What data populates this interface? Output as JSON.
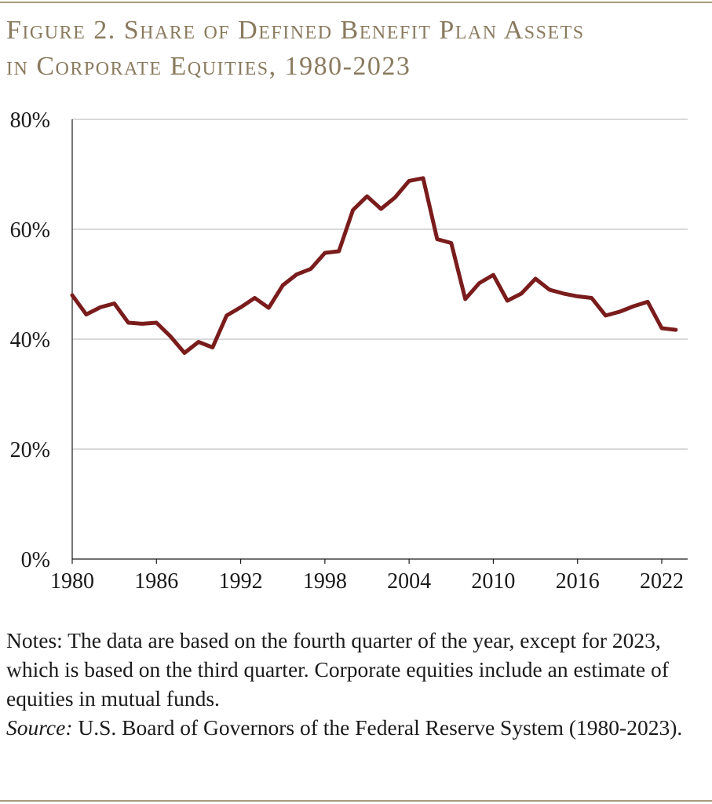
{
  "header": {
    "title_line1": "Figure 2. Share of Defined Benefit Plan Assets",
    "title_line2": "in Corporate Equities, 1980-2023"
  },
  "chart_data": {
    "type": "line",
    "title": "Figure 2. Share of Defined Benefit Plan Assets in Corporate Equities, 1980-2023",
    "xlabel": "",
    "ylabel": "",
    "xlim": [
      1980,
      2023
    ],
    "ylim": [
      0,
      80
    ],
    "x_ticks": [
      1980,
      1986,
      1992,
      1998,
      2004,
      2010,
      2016,
      2022
    ],
    "y_ticks": [
      0,
      20,
      40,
      60,
      80
    ],
    "y_tick_labels": [
      "0%",
      "20%",
      "40%",
      "60%",
      "80%"
    ],
    "grid": "horizontal",
    "line_color": "#7a1c1c",
    "series": [
      {
        "x": [
          1980,
          1981,
          1982,
          1983,
          1984,
          1985,
          1986,
          1987,
          1988,
          1989,
          1990,
          1991,
          1992,
          1993,
          1994,
          1995,
          1996,
          1997,
          1998,
          1999,
          2000,
          2001,
          2002,
          2003,
          2004,
          2005,
          2006,
          2007,
          2008,
          2009,
          2010,
          2011,
          2012,
          2013,
          2014,
          2015,
          2016,
          2017,
          2018,
          2019,
          2020,
          2021,
          2022,
          2023
        ],
        "values": [
          48.0,
          44.5,
          45.8,
          46.5,
          43.0,
          42.8,
          43.0,
          40.5,
          37.5,
          39.5,
          38.5,
          44.3,
          45.8,
          47.5,
          45.7,
          49.8,
          51.8,
          52.8,
          55.7,
          56.0,
          63.5,
          66.0,
          63.7,
          65.8,
          68.8,
          69.3,
          58.2,
          57.5,
          47.3,
          50.2,
          51.7,
          47.0,
          48.3,
          51.0,
          49.0,
          48.3,
          47.8,
          47.5,
          44.3,
          45.0,
          46.0,
          46.8,
          42.0,
          41.7
        ]
      }
    ]
  },
  "notes": {
    "text": "Notes: The data are based on the fourth quarter of the year, except for 2023, which is based on the third quarter.  Corporate equities include an estimate of equities in mutual funds.",
    "source_label": "Source:",
    "source_text": " U.S. Board of Governors of the Federal Reserve System (1980-2023)."
  }
}
